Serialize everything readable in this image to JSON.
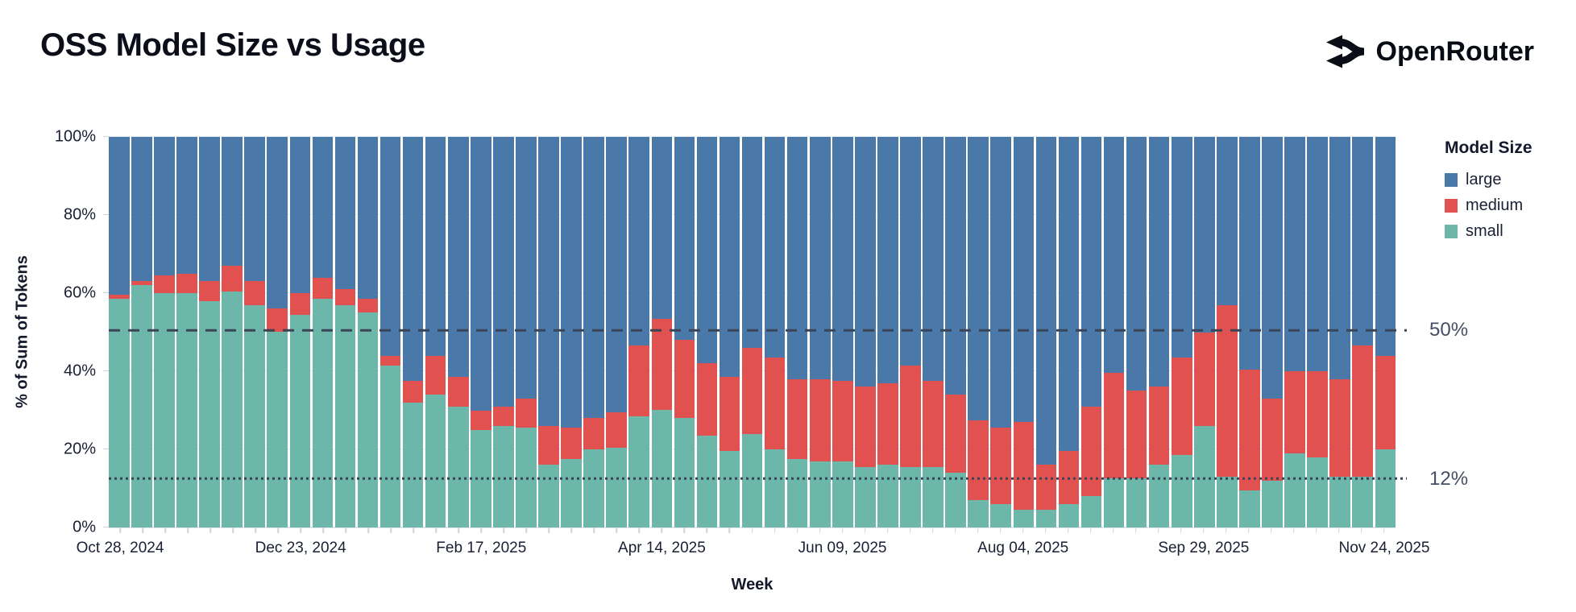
{
  "header": {
    "title": "OSS Model Size vs Usage",
    "brand": "OpenRouter"
  },
  "chart_data": {
    "type": "bar",
    "stacked": true,
    "normalized_percent": true,
    "title": "OSS Model Size vs Usage",
    "xlabel": "Week",
    "ylabel": "% of Sum of Tokens",
    "ylim": [
      0,
      100
    ],
    "y_ticks": [
      0,
      20,
      40,
      60,
      80,
      100
    ],
    "x_tick_every": 8,
    "x_tick_labels": [
      "Oct 28, 2024",
      "Dec 23, 2024",
      "Feb 17, 2025",
      "Apr 14, 2025",
      "Jun 09, 2025",
      "Aug 04, 2025",
      "Sep 29, 2025",
      "Nov 24, 2025"
    ],
    "grid": true,
    "legend": {
      "title": "Model Size",
      "position": "right",
      "entries": [
        {
          "label": "large",
          "color": "#4a78a8"
        },
        {
          "label": "medium",
          "color": "#e0514f"
        },
        {
          "label": "small",
          "color": "#6db6aa"
        }
      ]
    },
    "reference_lines": [
      {
        "value": 50,
        "label": "50%",
        "style": "dashed",
        "color": "#3b4456"
      },
      {
        "value": 12,
        "label": "12%",
        "style": "dotted",
        "color": "#3b4456"
      }
    ],
    "stack_order_bottom_to_top": [
      "small",
      "medium",
      "large"
    ],
    "weeks": [
      {
        "week": "Oct 28, 2024",
        "small": 58.5,
        "medium": 1.0,
        "large": 40.5
      },
      {
        "week": "Nov 04, 2024",
        "small": 62.0,
        "medium": 1.0,
        "large": 37.0
      },
      {
        "week": "Nov 11, 2024",
        "small": 60.0,
        "medium": 4.5,
        "large": 35.5
      },
      {
        "week": "Nov 18, 2024",
        "small": 60.0,
        "medium": 5.0,
        "large": 35.0
      },
      {
        "week": "Nov 25, 2024",
        "small": 58.0,
        "medium": 5.0,
        "large": 37.0
      },
      {
        "week": "Dec 02, 2024",
        "small": 60.5,
        "medium": 6.5,
        "large": 33.0
      },
      {
        "week": "Dec 09, 2024",
        "small": 57.0,
        "medium": 6.0,
        "large": 37.0
      },
      {
        "week": "Dec 16, 2024",
        "small": 50.0,
        "medium": 6.0,
        "large": 44.0
      },
      {
        "week": "Dec 23, 2024",
        "small": 54.5,
        "medium": 5.5,
        "large": 40.0
      },
      {
        "week": "Dec 30, 2024",
        "small": 58.5,
        "medium": 5.5,
        "large": 36.0
      },
      {
        "week": "Jan 06, 2025",
        "small": 57.0,
        "medium": 4.0,
        "large": 39.0
      },
      {
        "week": "Jan 13, 2025",
        "small": 55.0,
        "medium": 3.5,
        "large": 41.5
      },
      {
        "week": "Jan 20, 2025",
        "small": 41.5,
        "medium": 2.5,
        "large": 56.0
      },
      {
        "week": "Jan 27, 2025",
        "small": 32.0,
        "medium": 5.5,
        "large": 62.5
      },
      {
        "week": "Feb 03, 2025",
        "small": 34.0,
        "medium": 10.0,
        "large": 56.0
      },
      {
        "week": "Feb 10, 2025",
        "small": 31.0,
        "medium": 7.5,
        "large": 61.5
      },
      {
        "week": "Feb 17, 2025",
        "small": 25.0,
        "medium": 5.0,
        "large": 70.0
      },
      {
        "week": "Feb 24, 2025",
        "small": 26.0,
        "medium": 5.0,
        "large": 69.0
      },
      {
        "week": "Mar 03, 2025",
        "small": 25.5,
        "medium": 7.5,
        "large": 67.0
      },
      {
        "week": "Mar 10, 2025",
        "small": 16.0,
        "medium": 10.0,
        "large": 74.0
      },
      {
        "week": "Mar 17, 2025",
        "small": 17.5,
        "medium": 8.0,
        "large": 74.5
      },
      {
        "week": "Mar 24, 2025",
        "small": 20.0,
        "medium": 8.0,
        "large": 72.0
      },
      {
        "week": "Mar 31, 2025",
        "small": 20.5,
        "medium": 9.0,
        "large": 70.5
      },
      {
        "week": "Apr 07, 2025",
        "small": 28.5,
        "medium": 18.0,
        "large": 53.5
      },
      {
        "week": "Apr 14, 2025",
        "small": 30.0,
        "medium": 23.5,
        "large": 46.5
      },
      {
        "week": "Apr 21, 2025",
        "small": 28.0,
        "medium": 20.0,
        "large": 52.0
      },
      {
        "week": "Apr 28, 2025",
        "small": 23.5,
        "medium": 18.5,
        "large": 58.0
      },
      {
        "week": "May 05, 2025",
        "small": 19.5,
        "medium": 19.0,
        "large": 61.5
      },
      {
        "week": "May 12, 2025",
        "small": 24.0,
        "medium": 22.0,
        "large": 54.0
      },
      {
        "week": "May 19, 2025",
        "small": 20.0,
        "medium": 23.5,
        "large": 56.5
      },
      {
        "week": "May 26, 2025",
        "small": 17.5,
        "medium": 20.5,
        "large": 62.0
      },
      {
        "week": "Jun 02, 2025",
        "small": 17.0,
        "medium": 21.0,
        "large": 62.0
      },
      {
        "week": "Jun 09, 2025",
        "small": 17.0,
        "medium": 20.5,
        "large": 62.5
      },
      {
        "week": "Jun 16, 2025",
        "small": 15.5,
        "medium": 20.5,
        "large": 64.0
      },
      {
        "week": "Jun 23, 2025",
        "small": 16.0,
        "medium": 21.0,
        "large": 63.0
      },
      {
        "week": "Jun 30, 2025",
        "small": 15.5,
        "medium": 26.0,
        "large": 58.5
      },
      {
        "week": "Jul 07, 2025",
        "small": 15.5,
        "medium": 22.0,
        "large": 62.5
      },
      {
        "week": "Jul 14, 2025",
        "small": 14.0,
        "medium": 20.0,
        "large": 66.0
      },
      {
        "week": "Jul 21, 2025",
        "small": 7.0,
        "medium": 20.5,
        "large": 72.5
      },
      {
        "week": "Jul 28, 2025",
        "small": 6.0,
        "medium": 19.5,
        "large": 74.5
      },
      {
        "week": "Aug 04, 2025",
        "small": 4.5,
        "medium": 22.5,
        "large": 73.0
      },
      {
        "week": "Aug 11, 2025",
        "small": 4.5,
        "medium": 11.5,
        "large": 84.0
      },
      {
        "week": "Aug 18, 2025",
        "small": 6.0,
        "medium": 13.5,
        "large": 80.5
      },
      {
        "week": "Aug 25, 2025",
        "small": 8.0,
        "medium": 23.0,
        "large": 69.0
      },
      {
        "week": "Sep 01, 2025",
        "small": 12.5,
        "medium": 27.0,
        "large": 60.5
      },
      {
        "week": "Sep 08, 2025",
        "small": 12.5,
        "medium": 22.5,
        "large": 65.0
      },
      {
        "week": "Sep 15, 2025",
        "small": 16.0,
        "medium": 20.0,
        "large": 64.0
      },
      {
        "week": "Sep 22, 2025",
        "small": 18.5,
        "medium": 25.0,
        "large": 56.5
      },
      {
        "week": "Sep 29, 2025",
        "small": 26.0,
        "medium": 24.0,
        "large": 50.0
      },
      {
        "week": "Oct 06, 2025",
        "small": 13.0,
        "medium": 44.0,
        "large": 43.0
      },
      {
        "week": "Oct 13, 2025",
        "small": 9.5,
        "medium": 31.0,
        "large": 59.5
      },
      {
        "week": "Oct 20, 2025",
        "small": 12.0,
        "medium": 21.0,
        "large": 67.0
      },
      {
        "week": "Oct 27, 2025",
        "small": 19.0,
        "medium": 21.0,
        "large": 60.0
      },
      {
        "week": "Nov 03, 2025",
        "small": 18.0,
        "medium": 22.0,
        "large": 60.0
      },
      {
        "week": "Nov 10, 2025",
        "small": 13.0,
        "medium": 25.0,
        "large": 62.0
      },
      {
        "week": "Nov 17, 2025",
        "small": 13.0,
        "medium": 33.5,
        "large": 53.5
      },
      {
        "week": "Nov 24, 2025",
        "small": 20.0,
        "medium": 24.0,
        "large": 56.0
      }
    ]
  }
}
